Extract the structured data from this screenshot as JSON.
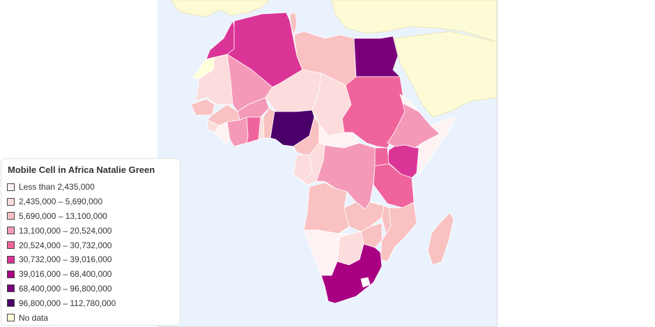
{
  "title": "Mobile Cell in Africa Natalie Green",
  "legend": [
    {
      "label": "Less than 2,435,000",
      "color": "#fef2f2"
    },
    {
      "label": "2,435,000 – 5,690,000",
      "color": "#fcdcdc"
    },
    {
      "label": "5,690,000 – 13,100,000",
      "color": "#f9c1c1"
    },
    {
      "label": "13,100,000 – 20,524,000",
      "color": "#f49ab8"
    },
    {
      "label": "20,524,000 – 30,732,000",
      "color": "#f0649c"
    },
    {
      "label": "30,732,000 – 39,016,000",
      "color": "#db3497"
    },
    {
      "label": "39,016,000 – 68,400,000",
      "color": "#a90083"
    },
    {
      "label": "68,400,000 – 96,800,000",
      "color": "#7a007a"
    },
    {
      "label": "96,800,000 – 112,780,000",
      "color": "#4a0068"
    },
    {
      "label": "No data",
      "color": "#ffffd9"
    }
  ],
  "map": {
    "ocean_color": "#eaf3fd",
    "other_land_color": "#fdfbd6",
    "countries": [
      {
        "name": "Morocco",
        "class": 5
      },
      {
        "name": "Western Sahara",
        "class": 9
      },
      {
        "name": "Algeria",
        "class": 5
      },
      {
        "name": "Tunisia",
        "class": 2
      },
      {
        "name": "Libya",
        "class": 2
      },
      {
        "name": "Egypt",
        "class": 7
      },
      {
        "name": "Mauritania",
        "class": 1
      },
      {
        "name": "Mali",
        "class": 3
      },
      {
        "name": "Niger",
        "class": 1
      },
      {
        "name": "Chad",
        "class": 1
      },
      {
        "name": "Sudan",
        "class": 4
      },
      {
        "name": "Senegal",
        "class": 2
      },
      {
        "name": "Guinea",
        "class": 2
      },
      {
        "name": "Sierra Leone",
        "class": 1
      },
      {
        "name": "Liberia",
        "class": 0
      },
      {
        "name": "Cote d'Ivoire",
        "class": 3
      },
      {
        "name": "Burkina Faso",
        "class": 3
      },
      {
        "name": "Ghana",
        "class": 4
      },
      {
        "name": "Togo",
        "class": 1
      },
      {
        "name": "Benin",
        "class": 2
      },
      {
        "name": "Nigeria",
        "class": 8
      },
      {
        "name": "Cameroon",
        "class": 2
      },
      {
        "name": "Central African Republic",
        "class": 0
      },
      {
        "name": "Ethiopia",
        "class": 3
      },
      {
        "name": "Eritrea",
        "class": 0
      },
      {
        "name": "Somalia",
        "class": 0
      },
      {
        "name": "Kenya",
        "class": 5
      },
      {
        "name": "Uganda",
        "class": 4
      },
      {
        "name": "DR Congo",
        "class": 3
      },
      {
        "name": "Congo",
        "class": 1
      },
      {
        "name": "Gabon",
        "class": 1
      },
      {
        "name": "Tanzania",
        "class": 4
      },
      {
        "name": "Angola",
        "class": 2
      },
      {
        "name": "Zambia",
        "class": 2
      },
      {
        "name": "Malawi",
        "class": 2
      },
      {
        "name": "Mozambique",
        "class": 2
      },
      {
        "name": "Zimbabwe",
        "class": 2
      },
      {
        "name": "Namibia",
        "class": 0
      },
      {
        "name": "Botswana",
        "class": 1
      },
      {
        "name": "South Africa",
        "class": 6
      },
      {
        "name": "Madagascar",
        "class": 2
      }
    ]
  }
}
